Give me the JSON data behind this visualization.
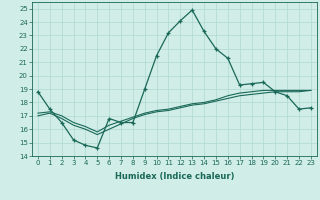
{
  "title": "",
  "xlabel": "Humidex (Indice chaleur)",
  "background_color": "#d0ede8",
  "grid_color": "#b0d8d0",
  "line_color": "#1a6858",
  "xlim": [
    -0.5,
    23.5
  ],
  "ylim": [
    14,
    25.5
  ],
  "yticks": [
    14,
    15,
    16,
    17,
    18,
    19,
    20,
    21,
    22,
    23,
    24,
    25
  ],
  "xticks": [
    0,
    1,
    2,
    3,
    4,
    5,
    6,
    7,
    8,
    9,
    10,
    11,
    12,
    13,
    14,
    15,
    16,
    17,
    18,
    19,
    20,
    21,
    22,
    23
  ],
  "series1_x": [
    0,
    1,
    2,
    3,
    4,
    5,
    6,
    7,
    8,
    9,
    10,
    11,
    12,
    13,
    14,
    15,
    16,
    17,
    18,
    19,
    20,
    21,
    22,
    23
  ],
  "series1_y": [
    18.8,
    17.5,
    16.5,
    15.2,
    14.8,
    14.6,
    16.8,
    16.5,
    16.5,
    19.0,
    21.5,
    23.2,
    24.1,
    24.9,
    23.3,
    22.0,
    21.3,
    19.3,
    19.4,
    19.5,
    18.8,
    18.5,
    17.5,
    17.6
  ],
  "series2_x": [
    0,
    1,
    2,
    3,
    4,
    5,
    6,
    7,
    8,
    9,
    10,
    11,
    12,
    13,
    14,
    15,
    16,
    17,
    18,
    19,
    20,
    21,
    22,
    23
  ],
  "series2_y": [
    17.2,
    17.3,
    17.0,
    16.5,
    16.2,
    15.8,
    16.3,
    16.6,
    16.9,
    17.2,
    17.4,
    17.5,
    17.7,
    17.9,
    18.0,
    18.2,
    18.5,
    18.7,
    18.8,
    18.9,
    18.9,
    18.9,
    18.9,
    18.9
  ],
  "series3_x": [
    0,
    1,
    2,
    3,
    4,
    5,
    6,
    7,
    8,
    9,
    10,
    11,
    12,
    13,
    14,
    15,
    16,
    17,
    18,
    19,
    20,
    21,
    22,
    23
  ],
  "series3_y": [
    17.0,
    17.2,
    16.8,
    16.3,
    16.0,
    15.6,
    16.0,
    16.4,
    16.8,
    17.1,
    17.3,
    17.4,
    17.6,
    17.8,
    17.9,
    18.1,
    18.3,
    18.5,
    18.6,
    18.7,
    18.8,
    18.8,
    18.8,
    18.9
  ]
}
